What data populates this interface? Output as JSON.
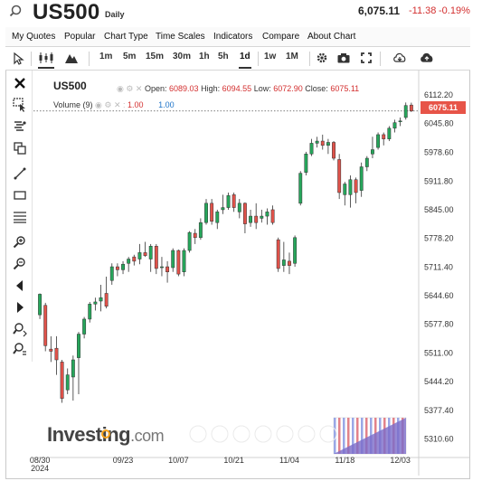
{
  "header": {
    "symbol": "US500",
    "period": "Daily",
    "price": "6,075.11",
    "change": "-11.38",
    "change_pct": "-0.19%"
  },
  "menu": [
    "My Quotes",
    "Popular",
    "Chart Type",
    "Time Scales",
    "Indicators",
    "Compare",
    "About Chart"
  ],
  "toolbar": {
    "intervals": [
      "1m",
      "5m",
      "15m",
      "30m",
      "1h",
      "5h",
      "1d",
      "1w",
      "1M"
    ],
    "active_interval": "1d"
  },
  "legend": {
    "symbol": "US500",
    "open_label": "Open:",
    "open": "6089.03",
    "high_label": "High:",
    "high": "6094.55",
    "low_label": "Low:",
    "low": "6072.90",
    "close_label": "Close:",
    "close": "6075.11",
    "volume_label": "Volume (9)",
    "volume_value": "1.00",
    "volume_ma": "1.00"
  },
  "last_price_tag": "6075.11",
  "watermark": {
    "brand": "Investing",
    "suffix": ".com"
  },
  "colors": {
    "up": "#26a65b",
    "down": "#e0524a",
    "last_price": "#e75448",
    "change": "#d32f2f"
  },
  "chart_data": {
    "type": "candlestick",
    "title": "US500",
    "interval": "Daily",
    "x_tick_labels": [
      "08/30\n2024",
      "09/23",
      "10/07",
      "10/21",
      "11/04",
      "11/18",
      "12/03"
    ],
    "y_tick_labels": [
      "6112.20",
      "6045.80",
      "5978.60",
      "5911.80",
      "5845.00",
      "5778.20",
      "5711.40",
      "5644.60",
      "5577.80",
      "5511.00",
      "5444.20",
      "5377.40",
      "5310.60"
    ],
    "ylim": [
      5280,
      6140
    ],
    "candles": [
      {
        "date": "2024-08-30",
        "o": 5600,
        "h": 5650,
        "l": 5590,
        "c": 5648
      },
      {
        "date": "2024-09-03",
        "o": 5622,
        "h": 5628,
        "l": 5515,
        "c": 5528
      },
      {
        "date": "2024-09-04",
        "o": 5520,
        "h": 5550,
        "l": 5490,
        "c": 5515
      },
      {
        "date": "2024-09-05",
        "o": 5522,
        "h": 5550,
        "l": 5460,
        "c": 5495
      },
      {
        "date": "2024-09-06",
        "o": 5490,
        "h": 5495,
        "l": 5395,
        "c": 5405
      },
      {
        "date": "2024-09-09",
        "o": 5425,
        "h": 5475,
        "l": 5415,
        "c": 5460
      },
      {
        "date": "2024-09-10",
        "o": 5455,
        "h": 5505,
        "l": 5400,
        "c": 5495
      },
      {
        "date": "2024-09-11",
        "o": 5500,
        "h": 5560,
        "l": 5415,
        "c": 5555
      },
      {
        "date": "2024-09-12",
        "o": 5555,
        "h": 5595,
        "l": 5545,
        "c": 5590
      },
      {
        "date": "2024-09-13",
        "o": 5590,
        "h": 5630,
        "l": 5582,
        "c": 5625
      },
      {
        "date": "2024-09-16",
        "o": 5625,
        "h": 5640,
        "l": 5610,
        "c": 5630
      },
      {
        "date": "2024-09-17",
        "o": 5632,
        "h": 5670,
        "l": 5608,
        "c": 5640
      },
      {
        "date": "2024-09-18",
        "o": 5650,
        "h": 5689,
        "l": 5615,
        "c": 5620
      },
      {
        "date": "2024-09-19",
        "o": 5680,
        "h": 5720,
        "l": 5670,
        "c": 5712
      },
      {
        "date": "2024-09-20",
        "o": 5712,
        "h": 5720,
        "l": 5690,
        "c": 5705
      },
      {
        "date": "2024-09-23",
        "o": 5705,
        "h": 5725,
        "l": 5695,
        "c": 5718
      },
      {
        "date": "2024-09-24",
        "o": 5720,
        "h": 5735,
        "l": 5700,
        "c": 5730
      },
      {
        "date": "2024-09-25",
        "o": 5735,
        "h": 5740,
        "l": 5715,
        "c": 5725
      },
      {
        "date": "2024-09-26",
        "o": 5730,
        "h": 5765,
        "l": 5718,
        "c": 5745
      },
      {
        "date": "2024-09-27",
        "o": 5745,
        "h": 5770,
        "l": 5735,
        "c": 5738
      },
      {
        "date": "2024-09-30",
        "o": 5730,
        "h": 5765,
        "l": 5700,
        "c": 5760
      },
      {
        "date": "2024-10-01",
        "o": 5760,
        "h": 5765,
        "l": 5695,
        "c": 5708
      },
      {
        "date": "2024-10-02",
        "o": 5710,
        "h": 5735,
        "l": 5690,
        "c": 5712
      },
      {
        "date": "2024-10-03",
        "o": 5712,
        "h": 5725,
        "l": 5675,
        "c": 5700
      },
      {
        "date": "2024-10-04",
        "o": 5710,
        "h": 5755,
        "l": 5700,
        "c": 5750
      },
      {
        "date": "2024-10-07",
        "o": 5750,
        "h": 5752,
        "l": 5690,
        "c": 5695
      },
      {
        "date": "2024-10-08",
        "o": 5700,
        "h": 5755,
        "l": 5690,
        "c": 5750
      },
      {
        "date": "2024-10-09",
        "o": 5750,
        "h": 5795,
        "l": 5745,
        "c": 5792
      },
      {
        "date": "2024-10-10",
        "o": 5790,
        "h": 5800,
        "l": 5765,
        "c": 5780
      },
      {
        "date": "2024-10-11",
        "o": 5780,
        "h": 5825,
        "l": 5775,
        "c": 5815
      },
      {
        "date": "2024-10-14",
        "o": 5815,
        "h": 5870,
        "l": 5810,
        "c": 5860
      },
      {
        "date": "2024-10-15",
        "o": 5860,
        "h": 5870,
        "l": 5810,
        "c": 5818
      },
      {
        "date": "2024-10-16",
        "o": 5815,
        "h": 5845,
        "l": 5800,
        "c": 5840
      },
      {
        "date": "2024-10-17",
        "o": 5845,
        "h": 5880,
        "l": 5835,
        "c": 5850
      },
      {
        "date": "2024-10-18",
        "o": 5850,
        "h": 5885,
        "l": 5845,
        "c": 5878
      },
      {
        "date": "2024-10-21",
        "o": 5880,
        "h": 5885,
        "l": 5840,
        "c": 5850
      },
      {
        "date": "2024-10-22",
        "o": 5840,
        "h": 5870,
        "l": 5825,
        "c": 5860
      },
      {
        "date": "2024-10-23",
        "o": 5860,
        "h": 5862,
        "l": 5790,
        "c": 5812
      },
      {
        "date": "2024-10-24",
        "o": 5815,
        "h": 5845,
        "l": 5805,
        "c": 5830
      },
      {
        "date": "2024-10-25",
        "o": 5830,
        "h": 5860,
        "l": 5800,
        "c": 5815
      },
      {
        "date": "2024-10-28",
        "o": 5825,
        "h": 5845,
        "l": 5815,
        "c": 5830
      },
      {
        "date": "2024-10-29",
        "o": 5830,
        "h": 5848,
        "l": 5810,
        "c": 5840
      },
      {
        "date": "2024-10-30",
        "o": 5845,
        "h": 5855,
        "l": 5810,
        "c": 5815
      },
      {
        "date": "2024-10-31",
        "o": 5775,
        "h": 5780,
        "l": 5700,
        "c": 5708
      },
      {
        "date": "2024-11-01",
        "o": 5715,
        "h": 5770,
        "l": 5700,
        "c": 5728
      },
      {
        "date": "2024-11-04",
        "o": 5725,
        "h": 5745,
        "l": 5695,
        "c": 5715
      },
      {
        "date": "2024-11-05",
        "o": 5720,
        "h": 5785,
        "l": 5712,
        "c": 5780
      },
      {
        "date": "2024-11-06",
        "o": 5860,
        "h": 5935,
        "l": 5855,
        "c": 5930
      },
      {
        "date": "2024-11-07",
        "o": 5932,
        "h": 5980,
        "l": 5925,
        "c": 5975
      },
      {
        "date": "2024-11-08",
        "o": 5975,
        "h": 6010,
        "l": 5970,
        "c": 6000
      },
      {
        "date": "2024-11-11",
        "o": 6000,
        "h": 6015,
        "l": 5990,
        "c": 6005
      },
      {
        "date": "2024-11-12",
        "o": 6005,
        "h": 6020,
        "l": 5985,
        "c": 5995
      },
      {
        "date": "2024-11-13",
        "o": 5995,
        "h": 6010,
        "l": 5975,
        "c": 6002
      },
      {
        "date": "2024-11-14",
        "o": 6002,
        "h": 6005,
        "l": 5960,
        "c": 5965
      },
      {
        "date": "2024-11-15",
        "o": 5962,
        "h": 5975,
        "l": 5870,
        "c": 5885
      },
      {
        "date": "2024-11-18",
        "o": 5880,
        "h": 5910,
        "l": 5855,
        "c": 5905
      },
      {
        "date": "2024-11-19",
        "o": 5880,
        "h": 5925,
        "l": 5850,
        "c": 5915
      },
      {
        "date": "2024-11-20",
        "o": 5915,
        "h": 5920,
        "l": 5860,
        "c": 5885
      },
      {
        "date": "2024-11-21",
        "o": 5890,
        "h": 5955,
        "l": 5875,
        "c": 5945
      },
      {
        "date": "2024-11-22",
        "o": 5945,
        "h": 5970,
        "l": 5935,
        "c": 5965
      },
      {
        "date": "2024-11-25",
        "o": 5975,
        "h": 6015,
        "l": 5965,
        "c": 5985
      },
      {
        "date": "2024-11-26",
        "o": 5990,
        "h": 6025,
        "l": 5985,
        "c": 6020
      },
      {
        "date": "2024-11-27",
        "o": 6020,
        "h": 6025,
        "l": 5995,
        "c": 6010
      },
      {
        "date": "2024-11-29",
        "o": 6010,
        "h": 6040,
        "l": 6005,
        "c": 6035
      },
      {
        "date": "2024-12-02",
        "o": 6035,
        "h": 6055,
        "l": 6025,
        "c": 6048
      },
      {
        "date": "2024-12-03",
        "o": 6050,
        "h": 6060,
        "l": 6040,
        "c": 6052
      },
      {
        "date": "2024-12-04",
        "o": 6060,
        "h": 6095,
        "l": 6055,
        "c": 6088
      },
      {
        "date": "2024-12-05",
        "o": 6089.03,
        "h": 6094.55,
        "l": 6072.9,
        "c": 6075.11
      }
    ],
    "grid": false
  }
}
